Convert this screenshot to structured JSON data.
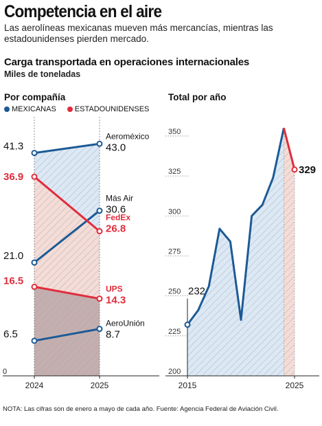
{
  "header": {
    "headline": "Competencia en el aire",
    "subhead": "Las aerolíneas mexicanas mueven más mercancías, mientras las estadounidenses pierden mercado."
  },
  "chart_title": "Carga transportada en operaciones internacionales",
  "chart_subtitle": "Miles de toneladas",
  "colors": {
    "mexicanas": "#1c5a96",
    "estadounidenses": "#e02c3c",
    "blue_fill": "#dce9f5",
    "red_fill": "#f5dcd6",
    "dark_fill": "#9c8a8e"
  },
  "legend": {
    "mexicanas": "MEXICANAS",
    "estadounidenses": "ESTADOUNIDENSES"
  },
  "footnote": "NOTA: Las cifras son de enero a mayo de cada año. Fuente: Agencia Federal de Aviación Civil.",
  "chart_data": [
    {
      "type": "line",
      "title": "Por compañía",
      "categories": [
        "2024",
        "2025"
      ],
      "ylim": [
        0,
        48
      ],
      "zero_label": "0",
      "series": [
        {
          "name": "Aeroméxico",
          "group": "mexicanas",
          "values": [
            41.3,
            43.0
          ],
          "labels": [
            "41.3",
            "43.0"
          ]
        },
        {
          "name": "Más Air",
          "group": "mexicanas",
          "values": [
            21.0,
            30.6
          ],
          "labels": [
            "21.0",
            "30.6"
          ]
        },
        {
          "name": "AeroUnión",
          "group": "mexicanas",
          "values": [
            6.5,
            8.7
          ],
          "labels": [
            "6.5",
            "8.7"
          ]
        },
        {
          "name": "FedEx",
          "group": "estadounidenses",
          "values": [
            36.9,
            26.8
          ],
          "labels": [
            "36.9",
            "26.8"
          ]
        },
        {
          "name": "UPS",
          "group": "estadounidenses",
          "values": [
            16.5,
            14.3
          ],
          "labels": [
            "16.5",
            "14.3"
          ]
        }
      ]
    },
    {
      "type": "area",
      "title": "Total por año",
      "x": [
        2015,
        2016,
        2017,
        2018,
        2019,
        2020,
        2021,
        2022,
        2023,
        2024,
        2025
      ],
      "values": [
        232,
        241,
        256,
        292,
        284,
        235,
        300,
        307,
        324,
        355,
        329
      ],
      "ylim": [
        200,
        362
      ],
      "yticks": [
        "200",
        "225",
        "250",
        "275",
        "300",
        "325",
        "350"
      ],
      "xtick_labels": [
        "2015",
        "2025"
      ],
      "start_label": "232",
      "end_label": "329"
    }
  ]
}
